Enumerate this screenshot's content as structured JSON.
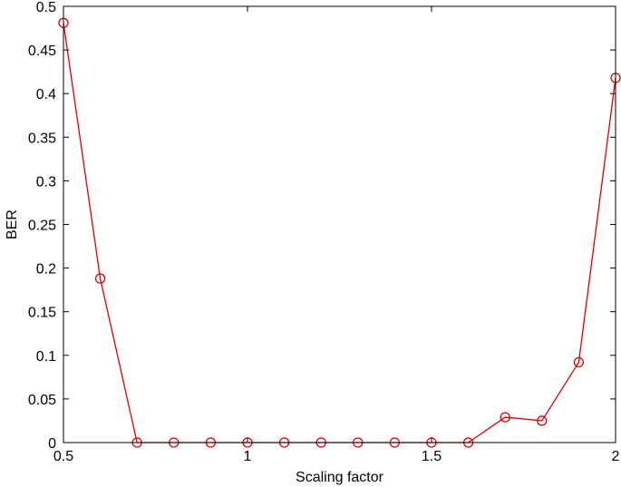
{
  "chart_data": {
    "type": "line",
    "title": "",
    "xlabel": "Scaling factor",
    "ylabel": "BER",
    "xlim": [
      0.5,
      2
    ],
    "ylim": [
      0,
      0.5
    ],
    "x_ticks": [
      0.5,
      1,
      1.5,
      2
    ],
    "x_tick_labels": [
      "0.5",
      "1",
      "1.5",
      "2"
    ],
    "y_ticks": [
      0,
      0.05,
      0.1,
      0.15,
      0.2,
      0.25,
      0.3,
      0.35,
      0.4,
      0.45,
      0.5
    ],
    "y_tick_labels": [
      "0",
      "0.05",
      "0.1",
      "0.15",
      "0.2",
      "0.25",
      "0.3",
      "0.35",
      "0.4",
      "0.45",
      "0.5"
    ],
    "grid": false,
    "legend": "none",
    "series": [
      {
        "color": "#e00000",
        "marker": "circle",
        "x": [
          0.5,
          0.6,
          0.7,
          0.8,
          0.9,
          1.0,
          1.1,
          1.2,
          1.3,
          1.4,
          1.5,
          1.6,
          1.7,
          1.8,
          1.9,
          2.0
        ],
        "y": [
          0.481,
          0.188,
          0,
          0,
          0,
          0,
          0,
          0,
          0,
          0,
          0,
          0,
          0.029,
          0.025,
          0.092,
          0.418
        ]
      }
    ]
  }
}
